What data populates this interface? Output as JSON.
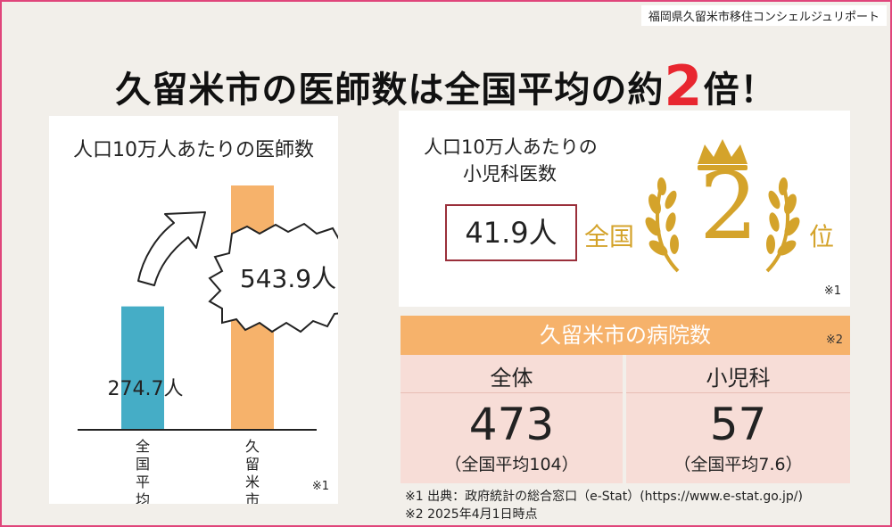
{
  "credit": "福岡県久留米市移住コンシェルジュリポート",
  "headline": {
    "text": "久留米市の医師数は全国平均の約",
    "highlight": "2",
    "suffix": "倍！"
  },
  "chart_data": {
    "type": "bar",
    "title": "人口10万人あたりの医師数",
    "categories": [
      "全国平均",
      "久留米市"
    ],
    "values": [
      274.7,
      543.9
    ],
    "value_labels": [
      "274.7人",
      "543.9人"
    ],
    "colors": [
      "#45adc6",
      "#f6b26b"
    ],
    "note": "※1"
  },
  "pediatric": {
    "title_line1": "人口10万人あたりの",
    "title_line2": "小児科医数",
    "value": "41.9人",
    "rank_prefix": "全国",
    "rank": "2",
    "rank_suffix": "位",
    "note": "※1",
    "accent": "#d4a32b"
  },
  "hospitals": {
    "title": "久留米市の病院数",
    "note": "※2",
    "columns": [
      {
        "label": "全体",
        "value": "473",
        "avg": "（全国平均104）"
      },
      {
        "label": "小児科",
        "value": "57",
        "avg": "（全国平均7.6）"
      }
    ]
  },
  "footnotes": [
    "※1 出典：政府統計の総合窓口（e-Stat）(https://www.e-stat.go.jp/)",
    "※2 2025年4月1日時点"
  ]
}
